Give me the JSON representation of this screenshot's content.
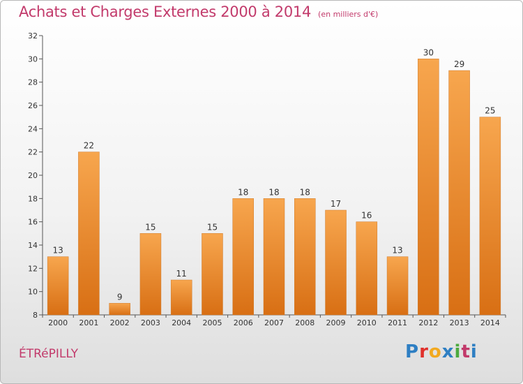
{
  "header": {
    "title": "Achats et Charges Externes 2000 à 2014",
    "subtitle": "(en milliers d'€)"
  },
  "footer": {
    "place": "ÉTRéPILLY",
    "logo": "Proxiti"
  },
  "colors": {
    "bar_top": "#f7a64e",
    "bar_bottom": "#d86f14",
    "title": "#c23a6b",
    "logo": [
      "#2e7fc3",
      "#e0312c",
      "#f2a91f",
      "#2e7fc3",
      "#4caa3e",
      "#c23a6b",
      "#2e7fc3"
    ]
  },
  "chart_data": {
    "type": "bar",
    "title": "Achats et Charges Externes 2000 à 2014",
    "subtitle": "(en milliers d'€)",
    "xlabel": "",
    "ylabel": "",
    "categories": [
      "2000",
      "2001",
      "2002",
      "2003",
      "2004",
      "2005",
      "2006",
      "2007",
      "2008",
      "2009",
      "2010",
      "2011",
      "2012",
      "2013",
      "2014"
    ],
    "values": [
      13,
      22,
      9,
      15,
      11,
      15,
      18,
      18,
      18,
      17,
      16,
      13,
      30,
      29,
      25
    ],
    "ylim": [
      8,
      32
    ],
    "yticks": [
      8,
      10,
      12,
      14,
      16,
      18,
      20,
      22,
      24,
      26,
      28,
      30,
      32
    ],
    "grid": false,
    "legend": "none"
  }
}
